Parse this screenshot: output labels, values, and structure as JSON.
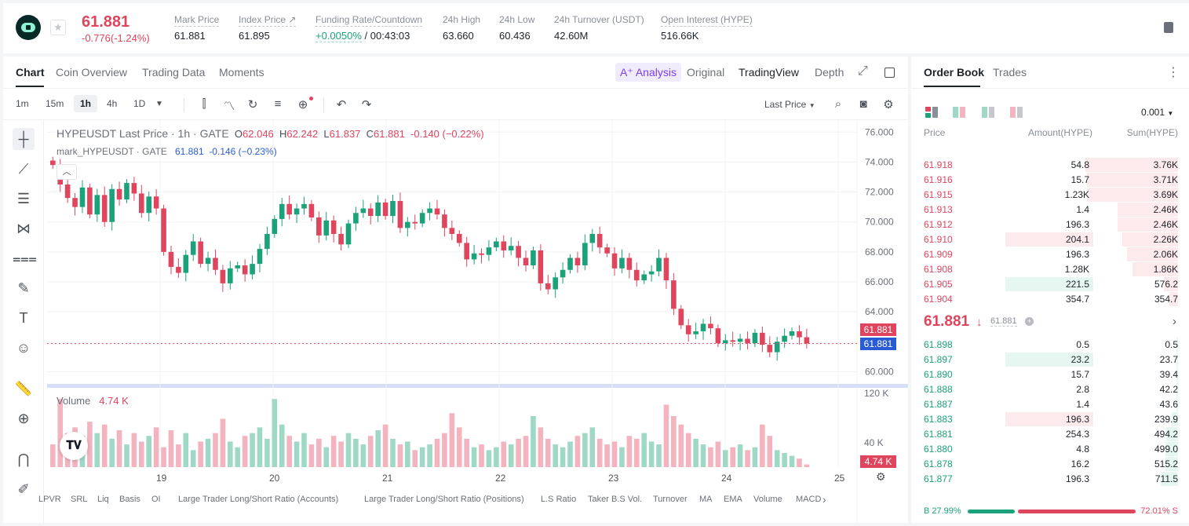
{
  "ticker": {
    "last_price": "61.881",
    "change": "-0.776(-1.24%)",
    "stats": [
      {
        "label": "Mark Price",
        "value": "61.881"
      },
      {
        "label": "Index Price ↗",
        "value": "61.895"
      },
      {
        "label": "Funding Rate/Countdown",
        "value_green": "+0.0050%",
        "value": "/ 00:43:03"
      },
      {
        "label": "24h High",
        "value": "63.660"
      },
      {
        "label": "24h Low",
        "value": "60.436"
      },
      {
        "label": "24h Turnover (USDT)",
        "value": "42.60M"
      },
      {
        "label": "Open Interest (HYPE)",
        "value": "516.66K"
      }
    ]
  },
  "chart_tabs": {
    "chart": "Chart",
    "coin_overview": "Coin Overview",
    "trading_data": "Trading Data",
    "moments": "Moments",
    "analysis": "A⁺ Analysis",
    "original": "Original",
    "tradingview": "TradingView",
    "depth": "Depth"
  },
  "toolbar": {
    "intervals": [
      "1m",
      "15m",
      "1h",
      "4h",
      "1D"
    ],
    "active_interval": "1h",
    "price_source": "Last Price"
  },
  "legend": {
    "symbol": "HYPEUSDT Last Price · 1h · GATE",
    "o_label": "O",
    "o": "62.046",
    "h_label": "H",
    "h": "62.242",
    "l_label": "L",
    "l": "61.837",
    "c_label": "C",
    "c": "61.881",
    "chg": "-0.140 (−0.22%)",
    "mark_label": "mark_HYPEUSDT · GATE",
    "mark_price": "61.881",
    "mark_chg": "-0.146 (−0.23%)",
    "volume_label": "Volume",
    "volume_value": "4.74 K"
  },
  "price_axis": [
    "76.000",
    "74.000",
    "72.000",
    "70.000",
    "68.000",
    "66.000",
    "64.000",
    "60.000"
  ],
  "price_tags": {
    "last": "61.881",
    "mark": "61.881"
  },
  "volume_axis": {
    "top": "120 K",
    "mid": "40 K",
    "tag": "4.74 K"
  },
  "time_axis": [
    "19",
    "20",
    "21",
    "22",
    "23",
    "24",
    "25"
  ],
  "indicators": [
    "LPVR",
    "SRL",
    "Liq",
    "Basis",
    "OI",
    "Large Trader Long/Short Ratio (Accounts)",
    "Large Trader Long/Short Ratio (Positions)",
    "L.S Ratio",
    "Taker B.S Vol.",
    "Turnover",
    "MA",
    "EMA",
    "Volume",
    "MACD"
  ],
  "colors": {
    "up": "#1ba27a",
    "down": "#e0455e",
    "accent": "#7a3cf0",
    "mark_tag": "#2a5bd7"
  },
  "chart_data": {
    "type": "candlestick",
    "ylim": [
      59.5,
      76.8
    ],
    "x_ticks": [
      "19",
      "20",
      "21",
      "22",
      "23",
      "24",
      "25"
    ],
    "close_path": [
      73.8,
      72.5,
      71.6,
      71.0,
      72.3,
      70.5,
      71.8,
      70.0,
      72.2,
      71.5,
      72.6,
      71.9,
      70.6,
      71.7,
      70.9,
      68.0,
      67.0,
      66.6,
      67.8,
      68.7,
      67.2,
      67.6,
      66.8,
      65.9,
      66.9,
      67.1,
      66.5,
      67.2,
      68.2,
      69.2,
      70.2,
      71.2,
      70.5,
      70.9,
      71.2,
      70.3,
      69.1,
      70.1,
      69.2,
      68.5,
      69.9,
      70.6,
      70.9,
      70.4,
      71.3,
      70.4,
      71.4,
      69.6,
      70.0,
      69.9,
      70.6,
      70.9,
      70.5,
      69.6,
      69.2,
      68.6,
      67.5,
      67.9,
      67.8,
      68.3,
      68.7,
      68.1,
      68.4,
      67.6,
      67.1,
      68.1,
      65.9,
      65.5,
      66.3,
      66.8,
      67.6,
      67.1,
      68.6,
      69.2,
      68.3,
      67.9,
      66.9,
      67.6,
      66.8,
      66.1,
      66.5,
      66.7,
      67.6,
      66.1,
      64.2,
      63.1,
      62.5,
      62.7,
      63.2,
      62.9,
      61.9,
      62.1,
      62.0,
      62.2,
      61.9,
      62.6,
      61.8,
      61.3,
      62.0,
      62.4,
      62.7,
      62.3,
      61.881
    ],
    "volume_k": [
      40,
      120,
      60,
      70,
      55,
      80,
      60,
      75,
      50,
      65,
      40,
      60,
      45,
      55,
      70,
      35,
      65,
      40,
      60,
      30,
      45,
      50,
      60,
      85,
      45,
      35,
      55,
      60,
      70,
      50,
      120,
      75,
      55,
      45,
      60,
      40,
      50,
      35,
      55,
      45,
      60,
      50,
      40,
      55,
      65,
      75,
      50,
      40,
      45,
      30,
      35,
      40,
      50,
      60,
      95,
      70,
      50,
      35,
      40,
      30,
      35,
      45,
      40,
      50,
      55,
      90,
      70,
      50,
      40,
      35,
      45,
      55,
      60,
      70,
      50,
      40,
      45,
      35,
      55,
      50,
      60,
      45,
      40,
      110,
      90,
      75,
      60,
      50,
      40,
      35,
      45,
      30,
      35,
      40,
      30,
      35,
      75,
      55,
      30,
      25,
      20,
      15,
      4.74
    ]
  },
  "orderbook": {
    "tabs": {
      "order_book": "Order Book",
      "trades": "Trades"
    },
    "precision": "0.001",
    "headers": {
      "price": "Price",
      "amount": "Amount(HYPE)",
      "sum": "Sum(HYPE)"
    },
    "asks": [
      {
        "price": "61.918",
        "amount": "54.8",
        "sum": "3.76K",
        "depth": 1.0
      },
      {
        "price": "61.916",
        "amount": "15.7",
        "sum": "3.71K",
        "depth": 0.985
      },
      {
        "price": "61.915",
        "amount": "1.23K",
        "sum": "3.69K",
        "depth": 0.98
      },
      {
        "price": "61.913",
        "amount": "1.4",
        "sum": "2.46K",
        "depth": 0.654
      },
      {
        "price": "61.912",
        "amount": "196.3",
        "sum": "2.46K",
        "depth": 0.654
      },
      {
        "price": "61.910",
        "amount": "204.1",
        "sum": "2.26K",
        "depth": 0.6
      },
      {
        "price": "61.909",
        "amount": "196.3",
        "sum": "2.06K",
        "depth": 0.548
      },
      {
        "price": "61.908",
        "amount": "1.28K",
        "sum": "1.86K",
        "depth": 0.495
      },
      {
        "price": "61.905",
        "amount": "221.5",
        "sum": "576.2",
        "depth": 0.153
      },
      {
        "price": "61.904",
        "amount": "354.7",
        "sum": "354.7",
        "depth": 0.094
      }
    ],
    "mid_price": "61.881",
    "mid_mark": "61.881",
    "bids": [
      {
        "price": "61.898",
        "amount": "0.5",
        "sum": "0.5",
        "depth": 0.001
      },
      {
        "price": "61.897",
        "amount": "23.2",
        "sum": "23.7",
        "depth": 0.006
      },
      {
        "price": "61.890",
        "amount": "15.7",
        "sum": "39.4",
        "depth": 0.01
      },
      {
        "price": "61.888",
        "amount": "2.8",
        "sum": "42.2",
        "depth": 0.011
      },
      {
        "price": "61.887",
        "amount": "1.4",
        "sum": "43.6",
        "depth": 0.012
      },
      {
        "price": "61.883",
        "amount": "196.3",
        "sum": "239.9",
        "depth": 0.064
      },
      {
        "price": "61.881",
        "amount": "254.3",
        "sum": "494.2",
        "depth": 0.131
      },
      {
        "price": "61.880",
        "amount": "4.8",
        "sum": "499.0",
        "depth": 0.133
      },
      {
        "price": "61.878",
        "amount": "16.2",
        "sum": "515.2",
        "depth": 0.137
      },
      {
        "price": "61.877",
        "amount": "196.3",
        "sum": "711.5",
        "depth": 0.189
      }
    ],
    "highlighted_asks": [
      "61.910"
    ],
    "highlighted_ask_green": [
      "61.905"
    ],
    "highlighted_bids_green": [
      "61.897"
    ],
    "highlighted_bids_red": [
      "61.883"
    ],
    "buy_pct": "B 27.99%",
    "sell_pct": "72.01% S"
  }
}
